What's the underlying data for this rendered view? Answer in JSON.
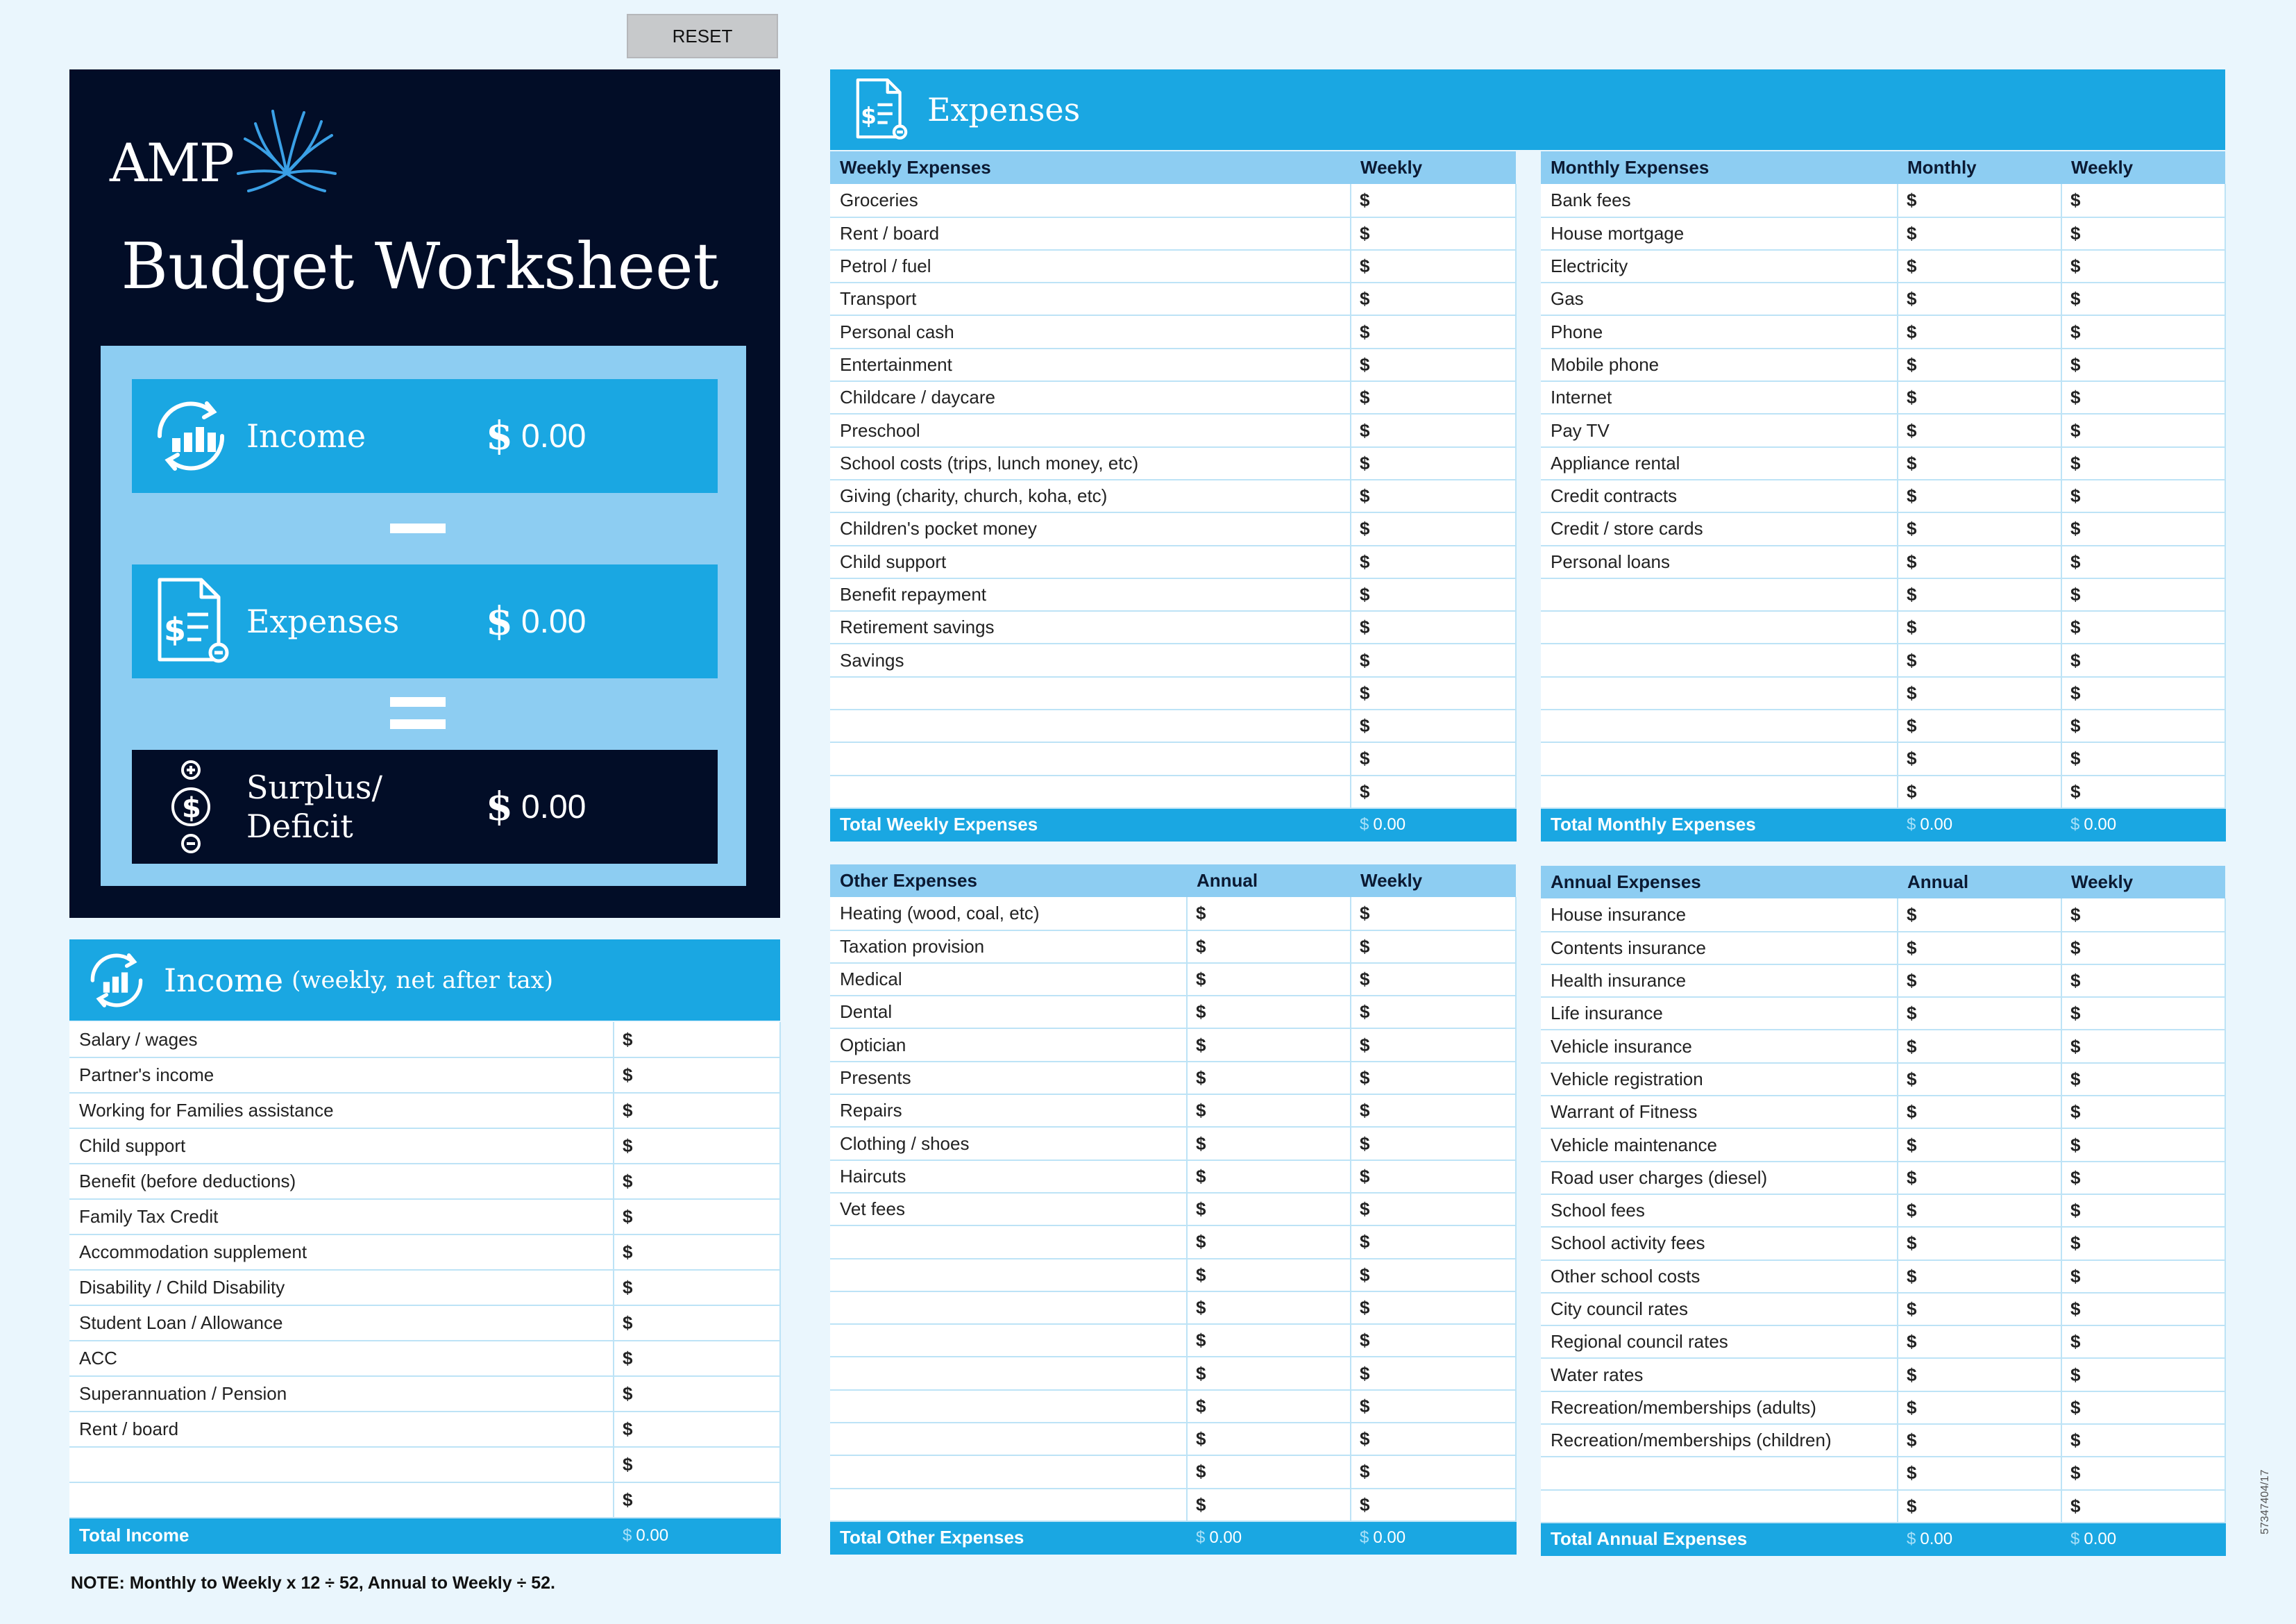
{
  "reset_label": "RESET",
  "brand": {
    "logo_text": "AMP",
    "title": "Budget Worksheet"
  },
  "summary": {
    "income_label": "Income",
    "expenses_label": "Expenses",
    "surplus_label_line1": "Surplus/",
    "surplus_label_line2": "Deficit",
    "currency": "$",
    "income_value": "0.00",
    "expenses_value": "0.00",
    "surplus_value": "0.00"
  },
  "income": {
    "title": "Income",
    "subtitle": "(weekly, net after tax)",
    "rows": [
      "Salary / wages",
      "Partner's income",
      "Working for Families assistance",
      "Child support",
      "Benefit (before deductions)",
      "Family Tax Credit",
      "Accommodation supplement",
      "Disability / Child Disability",
      "Student Loan / Allowance",
      "ACC",
      "Superannuation / Pension",
      "Rent / board",
      "",
      ""
    ],
    "total_label": "Total Income",
    "total_value": "0.00"
  },
  "expenses_title": "Expenses",
  "weekly": {
    "header": "Weekly Expenses",
    "col1": "Weekly",
    "rows": [
      "Groceries",
      "Rent / board",
      "Petrol / fuel",
      "Transport",
      "Personal cash",
      "Entertainment",
      "Childcare / daycare",
      "Preschool",
      "School costs (trips, lunch money, etc)",
      "Giving (charity, church, koha, etc)",
      "Children's pocket money",
      "Child support",
      "Benefit repayment",
      "Retirement savings",
      "Savings",
      "",
      "",
      "",
      ""
    ],
    "total_label": "Total Weekly Expenses",
    "total_value": "0.00"
  },
  "monthly": {
    "header": "Monthly Expenses",
    "col1": "Monthly",
    "col2": "Weekly",
    "rows": [
      "Bank fees",
      "House mortgage",
      "Electricity",
      "Gas",
      "Phone",
      "Mobile phone",
      "Internet",
      "Pay TV",
      "Appliance rental",
      "Credit contracts",
      "Credit / store cards",
      "Personal loans",
      "",
      "",
      "",
      "",
      "",
      "",
      ""
    ],
    "total_label": "Total Monthly Expenses",
    "total_value1": "0.00",
    "total_value2": "0.00"
  },
  "other": {
    "header": "Other Expenses",
    "col1": "Annual",
    "col2": "Weekly",
    "rows": [
      "Heating (wood, coal, etc)",
      "Taxation provision",
      "Medical",
      "Dental",
      "Optician",
      "Presents",
      "Repairs",
      "Clothing / shoes",
      "Haircuts",
      "Vet fees",
      "",
      "",
      "",
      "",
      "",
      "",
      "",
      "",
      ""
    ],
    "total_label": "Total Other Expenses",
    "total_value1": "0.00",
    "total_value2": "0.00"
  },
  "annual": {
    "header": "Annual Expenses",
    "col1": "Annual",
    "col2": "Weekly",
    "rows": [
      "House insurance",
      "Contents insurance",
      "Health insurance",
      "Life insurance",
      "Vehicle insurance",
      "Vehicle registration",
      "Warrant of Fitness",
      "Vehicle maintenance",
      "Road user charges (diesel)",
      "School fees",
      "School activity fees",
      "Other school costs",
      "City council rates",
      "Regional council rates",
      "Water rates",
      "Recreation/memberships (adults)",
      "Recreation/memberships (children)",
      "",
      ""
    ],
    "total_label": "Total Annual Expenses",
    "total_value1": "0.00",
    "total_value2": "0.00"
  },
  "note": "NOTE: Monthly to Weekly x 12 ÷ 52, Annual to Weekly ÷ 52.",
  "doc_code": "57347404/17"
}
